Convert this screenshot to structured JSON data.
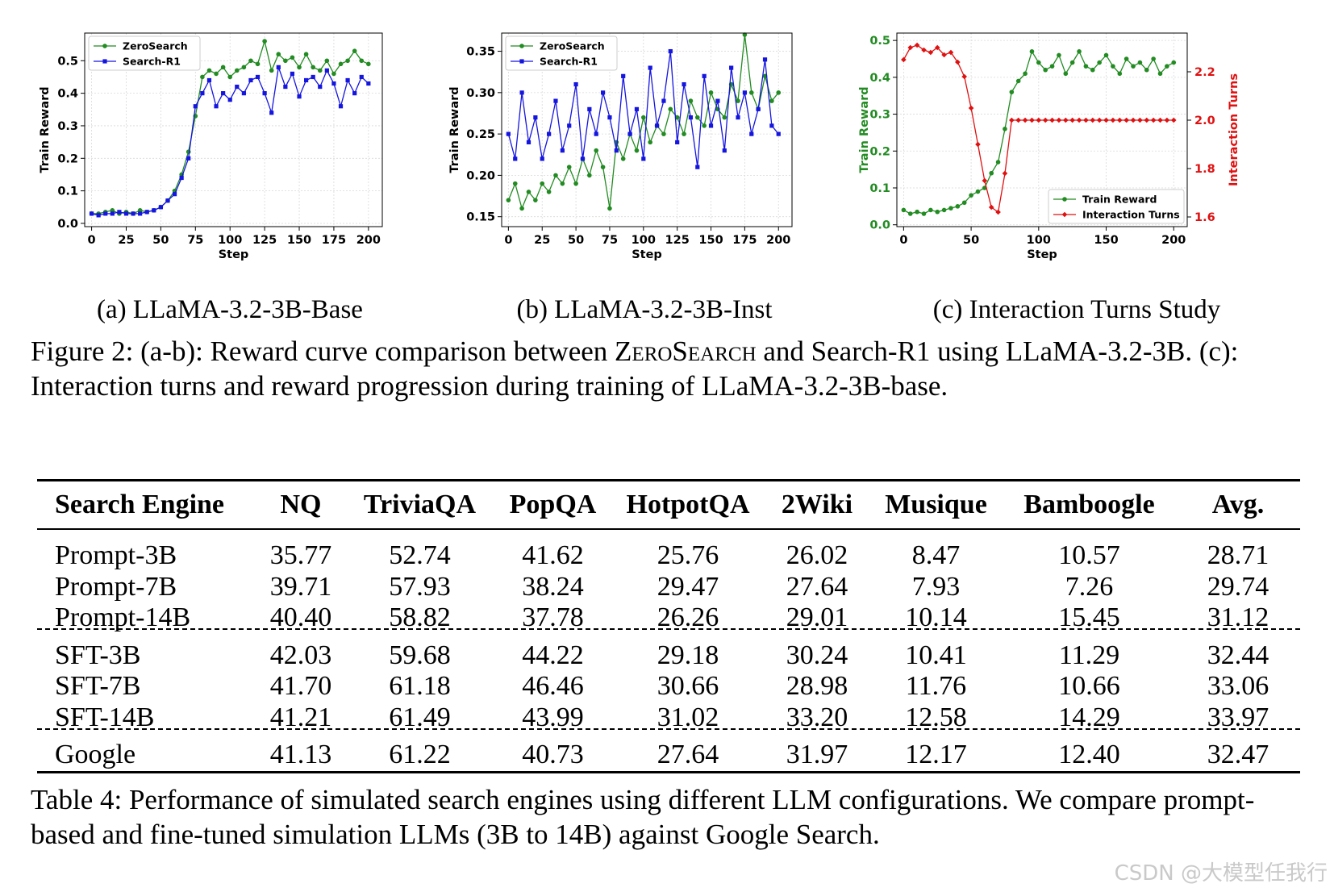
{
  "chart_data": [
    {
      "type": "line",
      "id": "a",
      "xlabel": "Step",
      "ylabel": "Train Reward",
      "xlim": [
        -5,
        210
      ],
      "ylim": [
        -0.01,
        0.585
      ],
      "xticks": [
        0,
        25,
        50,
        75,
        100,
        125,
        150,
        175,
        200
      ],
      "yticks": [
        0.0,
        0.1,
        0.2,
        0.3,
        0.4,
        0.5
      ],
      "ytick_labels": [
        "0.0",
        "0.1",
        "0.2",
        "0.3",
        "0.4",
        "0.5"
      ],
      "grid": true,
      "legend_position": "top-left",
      "series": [
        {
          "name": "ZeroSearch",
          "color": "#228B22",
          "marker": "circle",
          "x": [
            0,
            5,
            10,
            15,
            20,
            25,
            30,
            35,
            40,
            45,
            50,
            55,
            60,
            65,
            70,
            75,
            80,
            85,
            90,
            95,
            100,
            105,
            110,
            115,
            120,
            125,
            130,
            135,
            140,
            145,
            150,
            155,
            160,
            165,
            170,
            175,
            180,
            185,
            190,
            195,
            200
          ],
          "values": [
            0.03,
            0.03,
            0.035,
            0.04,
            0.03,
            0.035,
            0.03,
            0.04,
            0.035,
            0.04,
            0.05,
            0.07,
            0.1,
            0.15,
            0.22,
            0.33,
            0.45,
            0.47,
            0.46,
            0.48,
            0.45,
            0.47,
            0.48,
            0.5,
            0.49,
            0.56,
            0.47,
            0.52,
            0.5,
            0.51,
            0.48,
            0.52,
            0.48,
            0.47,
            0.5,
            0.46,
            0.49,
            0.5,
            0.53,
            0.5,
            0.49
          ]
        },
        {
          "name": "Search-R1",
          "color": "#1515E0",
          "marker": "square",
          "x": [
            0,
            5,
            10,
            15,
            20,
            25,
            30,
            35,
            40,
            45,
            50,
            55,
            60,
            65,
            70,
            75,
            80,
            85,
            90,
            95,
            100,
            105,
            110,
            115,
            120,
            125,
            130,
            135,
            140,
            145,
            150,
            155,
            160,
            165,
            170,
            175,
            180,
            185,
            190,
            195,
            200
          ],
          "values": [
            0.03,
            0.025,
            0.03,
            0.03,
            0.035,
            0.03,
            0.03,
            0.03,
            0.035,
            0.04,
            0.05,
            0.07,
            0.09,
            0.14,
            0.2,
            0.36,
            0.4,
            0.44,
            0.36,
            0.4,
            0.38,
            0.42,
            0.4,
            0.44,
            0.45,
            0.4,
            0.34,
            0.48,
            0.42,
            0.46,
            0.39,
            0.44,
            0.45,
            0.42,
            0.47,
            0.43,
            0.36,
            0.44,
            0.4,
            0.45,
            0.43
          ]
        }
      ]
    },
    {
      "type": "line",
      "id": "b",
      "xlabel": "Step",
      "ylabel": "Train Reward",
      "xlim": [
        -5,
        210
      ],
      "ylim": [
        0.138,
        0.372
      ],
      "xticks": [
        0,
        25,
        50,
        75,
        100,
        125,
        150,
        175,
        200
      ],
      "yticks": [
        0.15,
        0.2,
        0.25,
        0.3,
        0.35
      ],
      "ytick_labels": [
        "0.15",
        "0.20",
        "0.25",
        "0.30",
        "0.35"
      ],
      "grid": true,
      "legend_position": "top-left",
      "series": [
        {
          "name": "ZeroSearch",
          "color": "#228B22",
          "marker": "circle",
          "x": [
            0,
            5,
            10,
            15,
            20,
            25,
            30,
            35,
            40,
            45,
            50,
            55,
            60,
            65,
            70,
            75,
            80,
            85,
            90,
            95,
            100,
            105,
            110,
            115,
            120,
            125,
            130,
            135,
            140,
            145,
            150,
            155,
            160,
            165,
            170,
            175,
            180,
            185,
            190,
            195,
            200
          ],
          "values": [
            0.17,
            0.19,
            0.16,
            0.18,
            0.17,
            0.19,
            0.18,
            0.2,
            0.19,
            0.21,
            0.19,
            0.22,
            0.2,
            0.23,
            0.21,
            0.16,
            0.24,
            0.22,
            0.25,
            0.23,
            0.27,
            0.24,
            0.26,
            0.25,
            0.28,
            0.27,
            0.25,
            0.29,
            0.27,
            0.26,
            0.3,
            0.28,
            0.27,
            0.31,
            0.29,
            0.37,
            0.3,
            0.28,
            0.32,
            0.29,
            0.3
          ]
        },
        {
          "name": "Search-R1",
          "color": "#1515E0",
          "marker": "square",
          "x": [
            0,
            5,
            10,
            15,
            20,
            25,
            30,
            35,
            40,
            45,
            50,
            55,
            60,
            65,
            70,
            75,
            80,
            85,
            90,
            95,
            100,
            105,
            110,
            115,
            120,
            125,
            130,
            135,
            140,
            145,
            150,
            155,
            160,
            165,
            170,
            175,
            180,
            185,
            190,
            195,
            200
          ],
          "values": [
            0.25,
            0.22,
            0.3,
            0.24,
            0.27,
            0.22,
            0.25,
            0.29,
            0.23,
            0.26,
            0.31,
            0.22,
            0.28,
            0.25,
            0.3,
            0.27,
            0.23,
            0.32,
            0.25,
            0.28,
            0.22,
            0.33,
            0.26,
            0.29,
            0.35,
            0.24,
            0.31,
            0.27,
            0.21,
            0.32,
            0.26,
            0.29,
            0.23,
            0.33,
            0.27,
            0.3,
            0.25,
            0.28,
            0.34,
            0.26,
            0.25
          ]
        }
      ]
    },
    {
      "type": "line",
      "id": "c",
      "xlabel": "Step",
      "ylabel": "Train Reward",
      "y2label": "Interaction Turns",
      "xlim": [
        -5,
        210
      ],
      "ylim": [
        -0.005,
        0.52
      ],
      "y2lim": [
        1.56,
        2.36
      ],
      "xticks": [
        0,
        50,
        100,
        150,
        200
      ],
      "yticks": [
        0.0,
        0.1,
        0.2,
        0.3,
        0.4,
        0.5
      ],
      "ytick_labels": [
        "0.0",
        "0.1",
        "0.2",
        "0.3",
        "0.4",
        "0.5"
      ],
      "y2ticks": [
        1.6,
        1.8,
        2.0,
        2.2
      ],
      "y2tick_labels": [
        "1.6",
        "1.8",
        "2.0",
        "2.2"
      ],
      "grid": true,
      "legend_position": "bottom-right",
      "series": [
        {
          "name": "Train Reward",
          "color": "#228B22",
          "marker": "circle",
          "axis": "left",
          "x": [
            0,
            5,
            10,
            15,
            20,
            25,
            30,
            35,
            40,
            45,
            50,
            55,
            60,
            65,
            70,
            75,
            80,
            85,
            90,
            95,
            100,
            105,
            110,
            115,
            120,
            125,
            130,
            135,
            140,
            145,
            150,
            155,
            160,
            165,
            170,
            175,
            180,
            185,
            190,
            195,
            200
          ],
          "values": [
            0.04,
            0.03,
            0.035,
            0.03,
            0.04,
            0.035,
            0.04,
            0.045,
            0.05,
            0.06,
            0.08,
            0.09,
            0.1,
            0.14,
            0.17,
            0.26,
            0.36,
            0.39,
            0.41,
            0.47,
            0.44,
            0.42,
            0.43,
            0.46,
            0.41,
            0.44,
            0.47,
            0.43,
            0.42,
            0.44,
            0.46,
            0.43,
            0.41,
            0.45,
            0.43,
            0.44,
            0.42,
            0.45,
            0.41,
            0.43,
            0.44
          ]
        },
        {
          "name": "Interaction Turns",
          "color": "#E01010",
          "marker": "diamond",
          "axis": "right",
          "x": [
            0,
            5,
            10,
            15,
            20,
            25,
            30,
            35,
            40,
            45,
            50,
            55,
            60,
            65,
            70,
            75,
            80,
            85,
            90,
            95,
            100,
            105,
            110,
            115,
            120,
            125,
            130,
            135,
            140,
            145,
            150,
            155,
            160,
            165,
            170,
            175,
            180,
            185,
            190,
            195,
            200
          ],
          "values": [
            2.25,
            2.3,
            2.31,
            2.29,
            2.28,
            2.3,
            2.27,
            2.28,
            2.24,
            2.18,
            2.05,
            1.9,
            1.75,
            1.64,
            1.62,
            1.78,
            2.0,
            2.0,
            2.0,
            2.0,
            2.0,
            2.0,
            2.0,
            2.0,
            2.0,
            2.0,
            2.0,
            2.0,
            2.0,
            2.0,
            2.0,
            2.0,
            2.0,
            2.0,
            2.0,
            2.0,
            2.0,
            2.0,
            2.0,
            2.0,
            2.0
          ]
        }
      ]
    }
  ],
  "subcaptions": {
    "a": "(a) LLaMA-3.2-3B-Base",
    "b": "(b) LLaMA-3.2-3B-Inst",
    "c": "(c) Interaction Turns Study"
  },
  "figure_caption": {
    "prefix": "Figure 2: (a-b): Reward curve comparison between ",
    "method": "ZeroSearch",
    "suffix": " and Search-R1 using LLaMA-3.2-3B. (c): Interaction turns and reward progression during training of LLaMA-3.2-3B-base."
  },
  "table": {
    "headers": [
      "Search Engine",
      "NQ",
      "TriviaQA",
      "PopQA",
      "HotpotQA",
      "2Wiki",
      "Musique",
      "Bamboogle",
      "Avg."
    ],
    "groups": [
      [
        [
          "Prompt-3B",
          "35.77",
          "52.74",
          "41.62",
          "25.76",
          "26.02",
          "8.47",
          "10.57",
          "28.71"
        ],
        [
          "Prompt-7B",
          "39.71",
          "57.93",
          "38.24",
          "29.47",
          "27.64",
          "7.93",
          "7.26",
          "29.74"
        ],
        [
          "Prompt-14B",
          "40.40",
          "58.82",
          "37.78",
          "26.26",
          "29.01",
          "10.14",
          "15.45",
          "31.12"
        ]
      ],
      [
        [
          "SFT-3B",
          "42.03",
          "59.68",
          "44.22",
          "29.18",
          "30.24",
          "10.41",
          "11.29",
          "32.44"
        ],
        [
          "SFT-7B",
          "41.70",
          "61.18",
          "46.46",
          "30.66",
          "28.98",
          "11.76",
          "10.66",
          "33.06"
        ],
        [
          "SFT-14B",
          "41.21",
          "61.49",
          "43.99",
          "31.02",
          "33.20",
          "12.58",
          "14.29",
          "33.97"
        ]
      ],
      [
        [
          "Google",
          "41.13",
          "61.22",
          "40.73",
          "27.64",
          "31.97",
          "12.17",
          "12.40",
          "32.47"
        ]
      ]
    ]
  },
  "table_caption": "Table 4: Performance of simulated search engines using different LLM configurations. We compare prompt-based and fine-tuned simulation LLMs (3B to 14B) against Google Search.",
  "watermark": "CSDN @大模型任我行"
}
